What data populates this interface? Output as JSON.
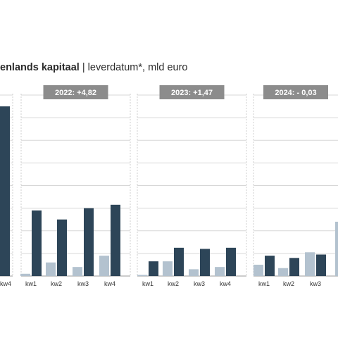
{
  "title": {
    "bold": "enlands kapitaal",
    "separator": " | ",
    "rest": "leverdatum*, mld euro"
  },
  "chart_data": {
    "type": "bar",
    "colors": {
      "light": "#b3c2cf",
      "dark": "#2d4558",
      "badge": "#8c8c8c",
      "grid": "#d7d7d7"
    },
    "y_scale": {
      "min": 0,
      "max": 8
    },
    "partial_panel": {
      "categories": [
        "kw4"
      ],
      "series": [
        {
          "values": [
            7.5
          ]
        }
      ]
    },
    "panels": [
      {
        "label": "2022: +4,82",
        "categories": [
          "kw1",
          "kw2",
          "kw3",
          "kw4"
        ],
        "series": [
          {
            "values": [
              0.1,
              0.6,
              0.4,
              0.9
            ]
          },
          {
            "values": [
              2.9,
              2.5,
              3.0,
              3.15
            ]
          }
        ]
      },
      {
        "label": "2023: +1,47",
        "categories": [
          "kw1",
          "kw2",
          "kw3",
          "kw4"
        ],
        "series": [
          {
            "values": [
              0.05,
              0.65,
              0.3,
              0.4
            ]
          },
          {
            "values": [
              0.65,
              1.25,
              1.2,
              1.25
            ]
          }
        ]
      },
      {
        "label": "2024: - 0,03",
        "categories": [
          "kw1",
          "kw2",
          "kw3"
        ],
        "series": [
          {
            "values": [
              0.5,
              0.35,
              1.05
            ]
          },
          {
            "values": [
              0.9,
              0.8,
              0.95
            ]
          }
        ]
      }
    ],
    "cut_bar_value": 2.4
  }
}
